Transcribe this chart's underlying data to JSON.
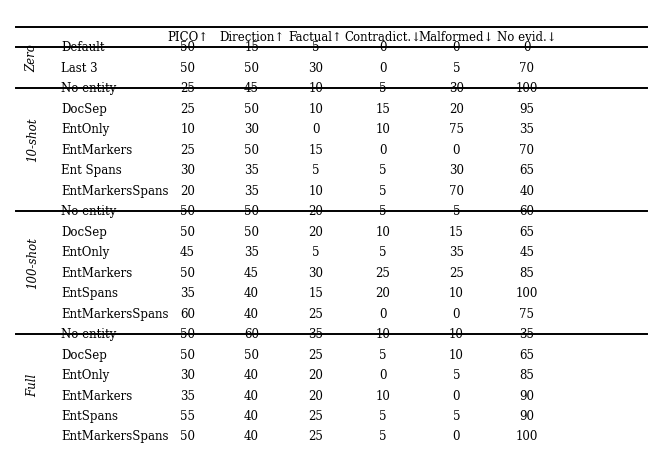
{
  "columns": [
    "",
    "PICO↑",
    "Direction↑",
    "Factual↑",
    "Contradict.↓",
    "Malformed↓",
    "No evid.↓"
  ],
  "sections": [
    {
      "label": "Zero",
      "rows": [
        [
          "Default",
          50,
          15,
          5,
          0,
          0,
          0
        ],
        [
          "Last 3",
          50,
          50,
          30,
          0,
          5,
          70
        ]
      ]
    },
    {
      "label": "10-shot",
      "rows": [
        [
          "No entity",
          25,
          45,
          10,
          5,
          30,
          100
        ],
        [
          "DocSep",
          25,
          50,
          10,
          15,
          20,
          95
        ],
        [
          "EntOnly",
          10,
          30,
          0,
          10,
          75,
          35
        ],
        [
          "EntMarkers",
          25,
          50,
          15,
          0,
          0,
          70
        ],
        [
          "Ent Spans",
          30,
          35,
          5,
          5,
          30,
          65
        ],
        [
          "EntMarkersSpans",
          20,
          35,
          10,
          5,
          70,
          40
        ]
      ]
    },
    {
      "label": "100-shot",
      "rows": [
        [
          "No entity",
          50,
          50,
          20,
          5,
          5,
          60
        ],
        [
          "DocSep",
          50,
          50,
          20,
          10,
          15,
          65
        ],
        [
          "EntOnly",
          45,
          35,
          5,
          5,
          35,
          45
        ],
        [
          "EntMarkers",
          50,
          45,
          30,
          25,
          25,
          85
        ],
        [
          "EntSpans",
          35,
          40,
          15,
          20,
          10,
          100
        ],
        [
          "EntMarkersSpans",
          60,
          40,
          25,
          0,
          0,
          75
        ]
      ]
    },
    {
      "label": "Full",
      "rows": [
        [
          "No entity",
          50,
          60,
          35,
          10,
          10,
          35
        ],
        [
          "DocSep",
          50,
          50,
          25,
          5,
          10,
          65
        ],
        [
          "EntOnly",
          30,
          40,
          20,
          0,
          5,
          85
        ],
        [
          "EntMarkers",
          35,
          40,
          20,
          10,
          0,
          90
        ],
        [
          "EntSpans",
          55,
          40,
          25,
          5,
          5,
          90
        ],
        [
          "EntMarkersSpans",
          50,
          40,
          25,
          5,
          0,
          100
        ]
      ]
    }
  ],
  "header_fontsize": 8.5,
  "cell_fontsize": 8.5,
  "label_fontsize": 8.5,
  "bg_color": "white",
  "text_color": "black",
  "line_color": "black",
  "thick_lw": 1.4,
  "thin_lw": 0.5
}
